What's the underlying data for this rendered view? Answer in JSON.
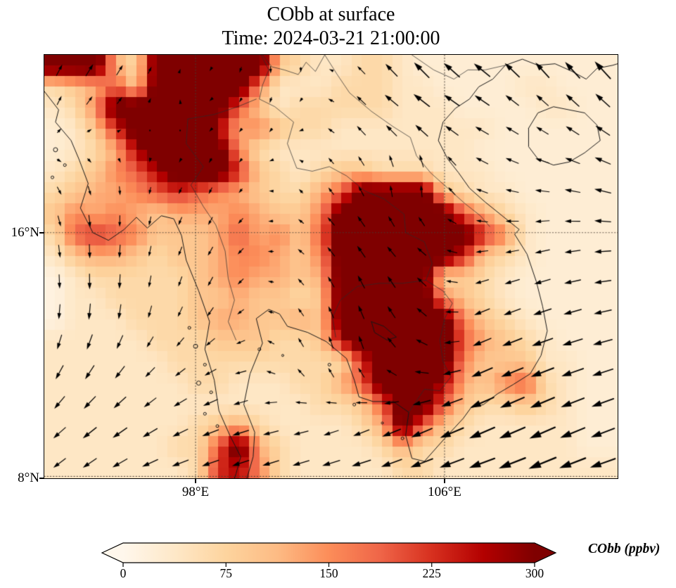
{
  "figure": {
    "title_line1": "CObb at surface",
    "title_line2": "Time: 2024-03-21 21:00:00",
    "background": "#ffffff"
  },
  "map": {
    "lon_range": [
      93.14,
      111.56
    ],
    "lat_range": [
      8.0,
      21.79
    ],
    "x_ticks": [
      {
        "label": "98°E",
        "lon": 98
      },
      {
        "label": "106°E",
        "lon": 106
      }
    ],
    "y_ticks": [
      {
        "label": "16°N",
        "lat": 16
      },
      {
        "label": "8°N",
        "lat": 8
      }
    ],
    "gridline_lons": [
      98,
      106
    ],
    "gridline_lats": [
      16,
      8.06
    ],
    "gridline_color": "rgba(70,60,50,0.8)",
    "coastline_color": "#171717",
    "border_color": "#2b2b2b"
  },
  "colorbar": {
    "label": "CObb (ppbv)",
    "ticks": [
      "0",
      "75",
      "150",
      "225",
      "300"
    ],
    "tick_values": [
      0,
      75,
      150,
      225,
      300
    ],
    "vmin": 0,
    "vmax": 300,
    "extend": "both",
    "colormap": "OrRd",
    "stops": [
      "#fff7ec",
      "#fee8c8",
      "#fdd49e",
      "#fdbb84",
      "#fc8d59",
      "#ef6548",
      "#d7301f",
      "#b30000",
      "#7f0000"
    ],
    "outline_color": "#000000"
  },
  "chart_data": {
    "type": "heatmap",
    "variable": "CObb",
    "units": "ppbv",
    "level": "surface",
    "time": "2024-03-21 21:00:00",
    "title": "CObb at surface",
    "subtitle": "Time: 2024-03-21 21:00:00",
    "xlabel_ticks": [
      "98°E",
      "106°E"
    ],
    "ylabel_ticks": [
      "16°N",
      "8°N"
    ],
    "value_range": [
      0,
      300
    ],
    "grid": {
      "ncols": 28,
      "nrows": 20,
      "lon_range": [
        93.14,
        111.56
      ],
      "lat_range": [
        8.0,
        21.79
      ],
      "level_key": {
        ".": 12,
        "0": 25,
        "1": 40,
        "2": 65,
        "3": 95,
        "4": 125,
        "5": 155,
        "6": 190,
        "7": 225,
        "8": 265,
        "9": 300,
        "D": 345
      },
      "rows": [
        "DDD42DDDDDD32112210000000000",
        "23463DDDDD511122211000011000",
        "125DDDDDD6312222211100001100",
        "0137DDDD84532211111111000000",
        "01248DDDD5211111111110000000",
        "123568DDD7321233222111000000",
        "234456765432246DDDD321100000",
        "35454344454335DDDDDD64210000",
        "26765333464536DDDDDDD7510000",
        "13443233455435DDDDDD73210000",
        ".1222223454434DDDDD232100000",
        ".1122223343323DDDDD532100000",
        ".1112223443343DDDDDD53210000",
        "111112223332238DDDDD64321000",
        "1111112222222227DDDD53331100",
        "1111111221112246DDD843562100",
        "11111111111112236DD632232100",
        "11111112342111124D6321111100",
        "111111226D421111242211111100",
        "1111111278521111122111111111"
      ]
    },
    "wind": {
      "arrow_color": "#000000",
      "lons": [
        93,
        95,
        97,
        99,
        101,
        103,
        105,
        107,
        109,
        111.5
      ],
      "lats": [
        21.8,
        19.8,
        17.8,
        15.8,
        13.8,
        11.8,
        9.8,
        8.0
      ],
      "u": [
        [
          0.2,
          0.3,
          0.1,
          -0.1,
          0.1,
          -0.2,
          -0.5,
          -0.6,
          -0.5,
          -0.6
        ],
        [
          0.1,
          0.2,
          0.0,
          -0.1,
          -0.1,
          -0.3,
          -0.6,
          -0.5,
          -0.4,
          -0.5
        ],
        [
          0.2,
          0.1,
          -0.1,
          -0.1,
          -0.1,
          -0.2,
          0.1,
          -0.4,
          -0.5,
          -0.6
        ],
        [
          0.1,
          0.0,
          -0.1,
          -0.2,
          -0.2,
          -0.3,
          -0.3,
          -0.4,
          -0.5,
          -0.6
        ],
        [
          0.0,
          0.0,
          -0.1,
          -0.2,
          -0.2,
          -0.2,
          -0.3,
          -0.5,
          -0.6,
          -0.6
        ],
        [
          -0.2,
          -0.3,
          -0.3,
          -0.4,
          -0.2,
          -0.1,
          -0.4,
          -0.7,
          -0.8,
          -0.7
        ],
        [
          -0.4,
          -0.5,
          -0.5,
          -0.6,
          -0.5,
          -0.5,
          -0.7,
          -0.9,
          -0.9,
          -0.8
        ],
        [
          -0.4,
          -0.5,
          -0.6,
          -0.6,
          -0.6,
          -0.7,
          -0.8,
          -0.9,
          -1.0,
          -0.9
        ]
      ],
      "v": [
        [
          0.4,
          0.5,
          0.2,
          -0.2,
          -0.3,
          0.2,
          0.6,
          0.5,
          0.6,
          0.7
        ],
        [
          0.3,
          0.2,
          0.1,
          -0.1,
          -0.2,
          0.3,
          0.4,
          0.3,
          0.3,
          0.4
        ],
        [
          -0.2,
          -0.3,
          -0.2,
          -0.2,
          0.1,
          0.3,
          0.5,
          0.2,
          0.1,
          0.2
        ],
        [
          -0.4,
          -0.5,
          -0.3,
          -0.3,
          0.1,
          0.4,
          0.3,
          0.0,
          -0.1,
          0.0
        ],
        [
          -0.5,
          -0.6,
          -0.4,
          -0.3,
          0.2,
          0.5,
          0.4,
          -0.2,
          -0.2,
          -0.1
        ],
        [
          -0.5,
          -0.5,
          -0.3,
          -0.2,
          0.3,
          0.5,
          0.2,
          -0.3,
          -0.3,
          -0.2
        ],
        [
          -0.4,
          -0.4,
          -0.3,
          -0.2,
          -0.1,
          -0.2,
          -0.3,
          -0.4,
          -0.4,
          -0.3
        ],
        [
          -0.3,
          -0.3,
          -0.2,
          -0.2,
          -0.2,
          -0.2,
          -0.3,
          -0.3,
          -0.4,
          -0.3
        ]
      ]
    }
  },
  "overlays": {
    "coastlines": [
      [
        [
          93.14,
          20.6
        ],
        [
          93.6,
          20.0
        ],
        [
          93.5,
          19.6
        ],
        [
          94.0,
          19.0
        ],
        [
          94.25,
          18.4
        ],
        [
          94.55,
          17.6
        ],
        [
          94.3,
          16.8
        ],
        [
          94.7,
          16.0
        ],
        [
          95.2,
          15.75
        ],
        [
          95.7,
          16.1
        ],
        [
          96.1,
          16.5
        ],
        [
          96.45,
          16.15
        ],
        [
          96.9,
          16.55
        ],
        [
          97.3,
          16.45
        ],
        [
          97.55,
          15.9
        ],
        [
          97.7,
          15.1
        ],
        [
          98.1,
          14.1
        ],
        [
          98.45,
          13.1
        ],
        [
          98.3,
          12.2
        ],
        [
          98.6,
          11.2
        ],
        [
          98.75,
          10.2
        ],
        [
          99.1,
          9.4
        ],
        [
          99.45,
          8.7
        ],
        [
          99.3,
          8.15
        ],
        [
          99.25,
          8.0
        ]
      ],
      [
        [
          99.65,
          8.0
        ],
        [
          99.85,
          8.7
        ],
        [
          99.9,
          9.5
        ],
        [
          99.55,
          10.4
        ],
        [
          99.75,
          11.4
        ],
        [
          100.15,
          12.4
        ],
        [
          99.95,
          13.2
        ],
        [
          100.35,
          13.5
        ],
        [
          100.7,
          13.35
        ],
        [
          100.95,
          12.95
        ],
        [
          101.6,
          12.75
        ],
        [
          102.2,
          12.45
        ],
        [
          102.85,
          11.9
        ],
        [
          103.1,
          11.2
        ],
        [
          103.25,
          10.65
        ],
        [
          103.7,
          10.5
        ],
        [
          104.35,
          10.5
        ],
        [
          104.85,
          10.15
        ],
        [
          104.75,
          9.4
        ],
        [
          104.95,
          8.65
        ],
        [
          105.35,
          8.55
        ],
        [
          106.05,
          9.35
        ],
        [
          106.6,
          9.95
        ],
        [
          106.85,
          10.3
        ],
        [
          107.25,
          10.4
        ],
        [
          107.7,
          10.75
        ],
        [
          108.2,
          11.05
        ],
        [
          108.75,
          11.4
        ],
        [
          109.1,
          12.0
        ],
        [
          109.3,
          12.8
        ],
        [
          109.15,
          13.6
        ],
        [
          108.95,
          14.4
        ],
        [
          108.65,
          15.3
        ],
        [
          108.25,
          15.95
        ],
        [
          108.4,
          16.1
        ],
        [
          107.85,
          16.55
        ],
        [
          107.3,
          17.0
        ],
        [
          106.8,
          17.45
        ],
        [
          106.45,
          17.95
        ],
        [
          106.1,
          18.4
        ],
        [
          105.8,
          19.0
        ],
        [
          105.95,
          19.6
        ],
        [
          106.35,
          20.05
        ],
        [
          106.8,
          20.35
        ],
        [
          107.1,
          20.75
        ],
        [
          107.55,
          21.0
        ],
        [
          107.95,
          21.45
        ],
        [
          108.5,
          21.65
        ],
        [
          109.0,
          21.45
        ],
        [
          109.55,
          21.5
        ],
        [
          110.1,
          21.25
        ],
        [
          110.55,
          21.0
        ],
        [
          110.9,
          21.35
        ],
        [
          111.4,
          21.45
        ],
        [
          111.56,
          21.5
        ]
      ],
      [
        [
          108.7,
          19.4
        ],
        [
          109.0,
          19.9
        ],
        [
          109.5,
          20.1
        ],
        [
          110.0,
          20.0
        ],
        [
          110.5,
          19.9
        ],
        [
          110.9,
          19.5
        ],
        [
          111.0,
          19.0
        ],
        [
          110.5,
          18.6
        ],
        [
          110.0,
          18.3
        ],
        [
          109.5,
          18.2
        ],
        [
          109.0,
          18.4
        ],
        [
          108.7,
          18.8
        ],
        [
          108.7,
          19.4
        ]
      ],
      [
        [
          103.65,
          13.1
        ],
        [
          104.05,
          12.95
        ],
        [
          104.45,
          12.6
        ],
        [
          104.15,
          12.5
        ],
        [
          103.75,
          12.75
        ],
        [
          103.65,
          13.1
        ]
      ]
    ],
    "islands": [
      [
        93.5,
        18.7,
        3
      ],
      [
        93.8,
        18.2,
        2
      ],
      [
        93.4,
        17.8,
        2
      ],
      [
        97.8,
        12.9,
        2
      ],
      [
        98.0,
        12.3,
        3
      ],
      [
        98.3,
        11.7,
        2
      ],
      [
        98.1,
        11.1,
        3
      ],
      [
        98.5,
        10.8,
        2
      ],
      [
        98.3,
        10.1,
        2
      ],
      [
        98.7,
        9.7,
        2
      ],
      [
        100.05,
        12.2,
        2
      ],
      [
        100.8,
        12.0,
        1.5
      ],
      [
        102.3,
        11.7,
        2
      ],
      [
        103.1,
        10.4,
        2
      ],
      [
        104.0,
        9.8,
        1.5
      ],
      [
        104.65,
        9.3,
        2
      ]
    ],
    "borders": [
      [
        [
          97.75,
          19.7
        ],
        [
          97.7,
          18.9
        ],
        [
          98.25,
          18.15
        ],
        [
          97.85,
          17.55
        ],
        [
          98.25,
          16.85
        ],
        [
          98.65,
          16.25
        ],
        [
          98.95,
          15.4
        ],
        [
          99.05,
          14.5
        ],
        [
          99.25,
          13.8
        ],
        [
          99.05,
          13.1
        ],
        [
          99.3,
          12.5
        ]
      ],
      [
        [
          100.1,
          21.79
        ],
        [
          100.35,
          21.3
        ],
        [
          100.15,
          20.8
        ],
        [
          100.05,
          20.35
        ],
        [
          100.55,
          20.1
        ],
        [
          101.15,
          19.6
        ],
        [
          100.95,
          18.9
        ],
        [
          101.25,
          18.1
        ],
        [
          101.75,
          18.0
        ],
        [
          102.3,
          18.15
        ],
        [
          102.85,
          17.85
        ],
        [
          103.45,
          17.35
        ],
        [
          104.05,
          17.1
        ],
        [
          104.7,
          16.6
        ],
        [
          104.75,
          16.0
        ],
        [
          105.35,
          15.7
        ],
        [
          105.6,
          15.0
        ],
        [
          105.4,
          14.45
        ]
      ],
      [
        [
          102.15,
          21.79
        ],
        [
          102.55,
          21.15
        ],
        [
          102.95,
          20.55
        ],
        [
          103.65,
          19.95
        ],
        [
          104.35,
          19.45
        ],
        [
          104.9,
          19.1
        ],
        [
          105.1,
          18.5
        ],
        [
          105.55,
          17.95
        ],
        [
          106.1,
          17.45
        ],
        [
          106.65,
          16.95
        ],
        [
          107.15,
          16.55
        ],
        [
          107.45,
          16.2
        ]
      ],
      [
        [
          105.4,
          14.45
        ],
        [
          104.65,
          14.35
        ],
        [
          103.9,
          14.35
        ],
        [
          103.2,
          14.25
        ],
        [
          102.65,
          13.8
        ],
        [
          102.4,
          13.25
        ],
        [
          102.5,
          12.6
        ]
      ],
      [
        [
          105.4,
          14.45
        ],
        [
          105.95,
          14.1
        ],
        [
          106.25,
          13.7
        ],
        [
          106.0,
          13.2
        ],
        [
          105.85,
          12.5
        ],
        [
          105.95,
          11.8
        ],
        [
          106.2,
          11.3
        ],
        [
          105.85,
          10.85
        ],
        [
          105.35,
          10.9
        ],
        [
          105.05,
          10.45
        ],
        [
          104.85,
          10.15
        ]
      ],
      [
        [
          104.95,
          21.79
        ],
        [
          105.65,
          21.3
        ],
        [
          106.3,
          21.0
        ],
        [
          106.75,
          21.3
        ],
        [
          107.3,
          21.3
        ],
        [
          107.95,
          21.45
        ]
      ],
      [
        [
          100.15,
          21.79
        ],
        [
          100.45,
          21.4
        ],
        [
          100.85,
          21.3
        ],
        [
          101.3,
          21.15
        ],
        [
          101.55,
          21.55
        ],
        [
          101.85,
          21.25
        ],
        [
          102.15,
          21.79
        ]
      ],
      [
        [
          99.95,
          20.35
        ],
        [
          99.35,
          20.1
        ],
        [
          98.6,
          19.85
        ],
        [
          97.75,
          19.7
        ]
      ]
    ]
  }
}
